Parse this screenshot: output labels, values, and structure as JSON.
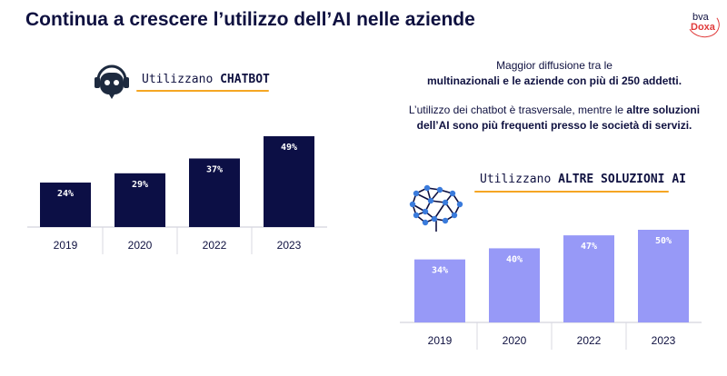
{
  "header": {
    "title": "Continua a crescere l’utilizzo dell’AI nelle aziende",
    "logo_top": "bva",
    "logo_bottom": "Doxa"
  },
  "info": {
    "line1": "Maggior diffusione tra le",
    "line2": "multinazionali e le aziende con più di 250 addetti.",
    "para2_a": "L’utilizzo dei chatbot è trasversale,  mentre le ",
    "para2_b": "altre soluzioni",
    "para2_c": "dell’AI sono più frequenti presso le società di servizi."
  },
  "chart_data": [
    {
      "type": "bar",
      "title_prefix": "Utilizzano ",
      "title_bold": "CHATBOT",
      "icon": "chatbot-robot-icon",
      "categories": [
        "2019",
        "2020",
        "2022",
        "2023"
      ],
      "values": [
        24,
        29,
        37,
        49
      ],
      "labels": [
        "24%",
        "29%",
        "37%",
        "49%"
      ],
      "color": "#0c0f45",
      "label_color": "#ffffff",
      "ylim": [
        0,
        50
      ]
    },
    {
      "type": "bar",
      "title_prefix": "Utilizzano ",
      "title_bold": "ALTRE SOLUZIONI AI",
      "icon": "brain-network-icon",
      "categories": [
        "2019",
        "2020",
        "2022",
        "2023"
      ],
      "values": [
        34,
        40,
        47,
        50
      ],
      "labels": [
        "34%",
        "40%",
        "47%",
        "50%"
      ],
      "color": "#9799f7",
      "label_color": "#ffffff",
      "ylim": [
        0,
        50
      ]
    }
  ]
}
